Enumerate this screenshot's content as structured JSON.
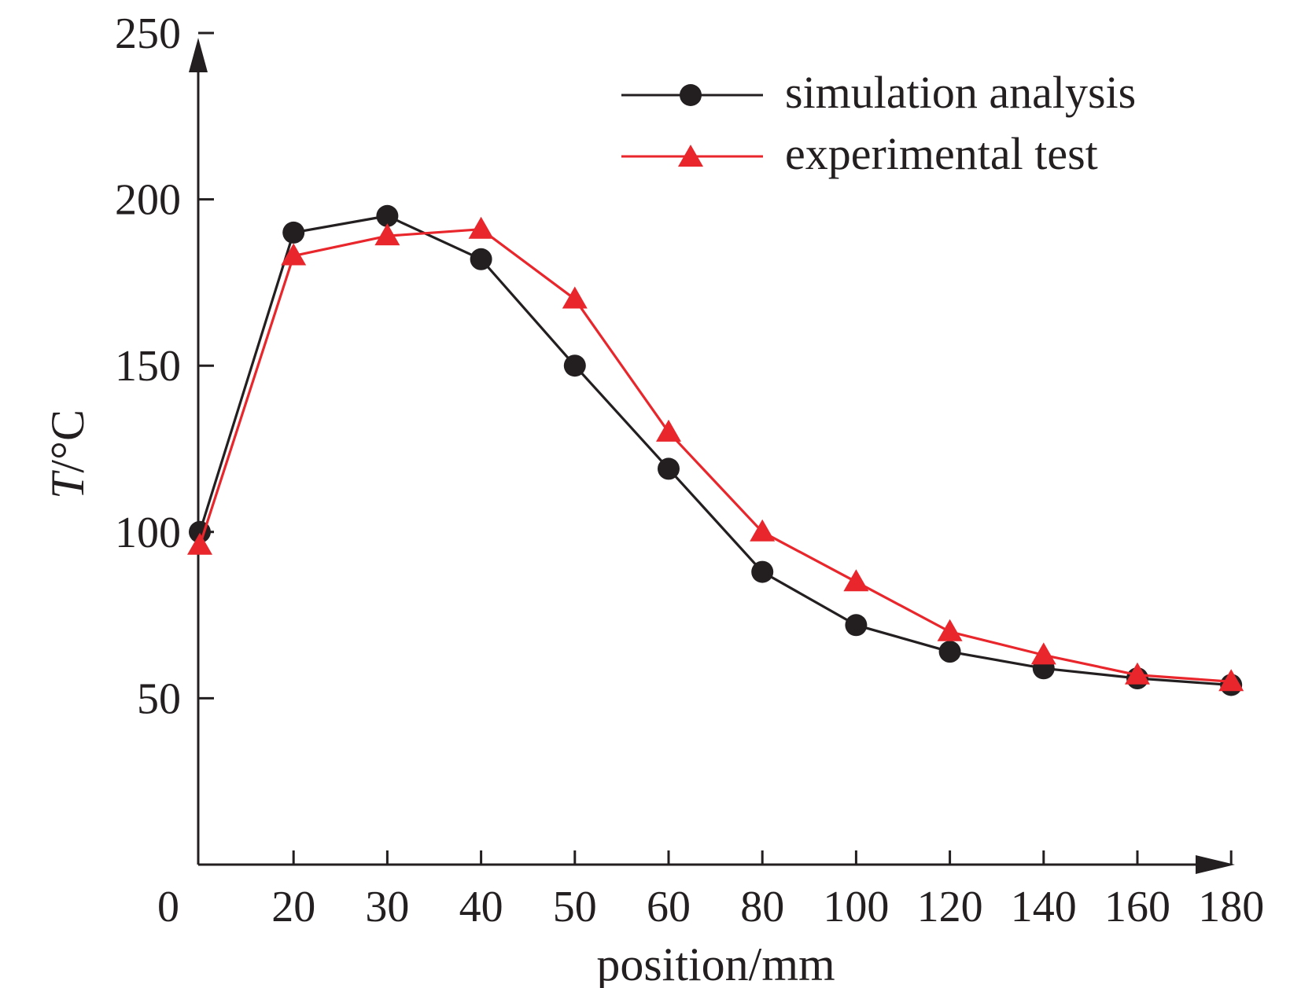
{
  "chart_data": {
    "type": "line",
    "x_tick_labels": [
      "0",
      "20",
      "30",
      "40",
      "50",
      "60",
      "80",
      "100",
      "120",
      "140",
      "160",
      "180"
    ],
    "x": [
      0,
      20,
      30,
      40,
      50,
      60,
      80,
      100,
      120,
      140,
      160,
      180
    ],
    "y_ticks": [
      50,
      100,
      150,
      200,
      250
    ],
    "ylim": [
      0,
      250
    ],
    "xlabel": "position/mm",
    "ylabel": "T/°C",
    "ylabel_italic_part": "T",
    "ylabel_rest": "/°C",
    "grid": false,
    "legend_position": "top-right",
    "series": [
      {
        "name": "simulation analysis",
        "marker": "circle",
        "color": "#231f20",
        "values": [
          100,
          190,
          195,
          182,
          150,
          119,
          88,
          72,
          64,
          59,
          56,
          54
        ]
      },
      {
        "name": "experimental test",
        "marker": "triangle",
        "color": "#e8262b",
        "values": [
          96,
          183,
          189,
          191,
          170,
          130,
          100,
          85,
          70,
          63,
          57,
          55
        ]
      }
    ]
  }
}
